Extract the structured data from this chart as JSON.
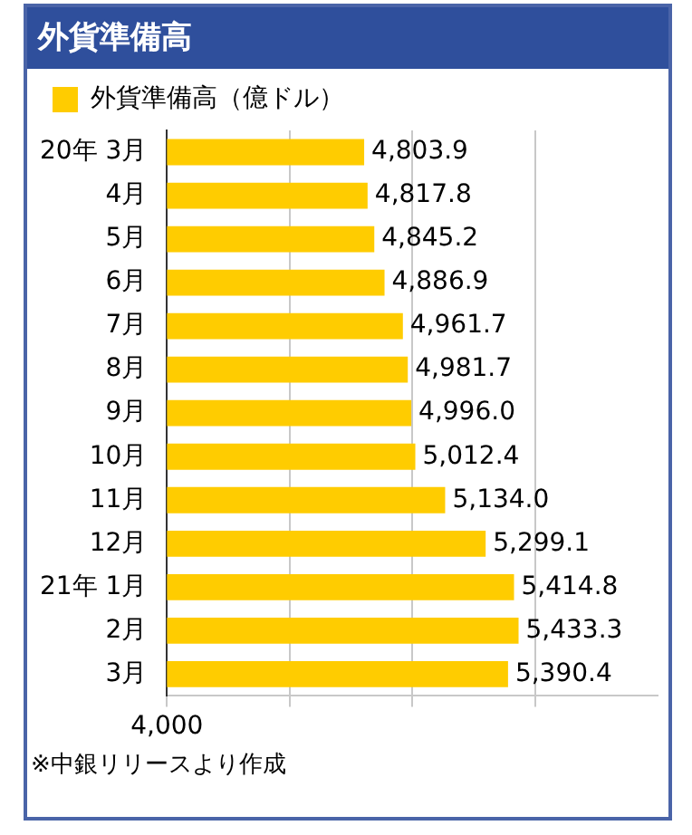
{
  "chart_data": {
    "type": "bar",
    "orientation": "horizontal",
    "title": "外貨準備高",
    "categories": [
      "20年 3月",
      "4月",
      "5月",
      "6月",
      "7月",
      "8月",
      "9月",
      "10月",
      "11月",
      "12月",
      "21年 1月",
      "2月",
      "3月"
    ],
    "series": [
      {
        "name": "外貨準備高（億ドル）",
        "color": "#ffcc00",
        "values": [
          4803.9,
          4817.8,
          4845.2,
          4886.9,
          4961.7,
          4981.7,
          4996.0,
          5012.4,
          5134.0,
          5299.1,
          5414.8,
          5433.3,
          5390.4
        ],
        "value_labels": [
          "4,803.9",
          "4,817.8",
          "4,845.2",
          "4,886.9",
          "4,961.7",
          "4,981.7",
          "4,996.0",
          "5,012.4",
          "5,134.0",
          "5,299.1",
          "5,414.8",
          "5,433.3",
          "5,390.4"
        ]
      }
    ],
    "xlim": [
      4000,
      6000
    ],
    "grid": "x",
    "legend": "top left",
    "annotations": [
      "4,000",
      "※中銀リリースより作成"
    ]
  }
}
